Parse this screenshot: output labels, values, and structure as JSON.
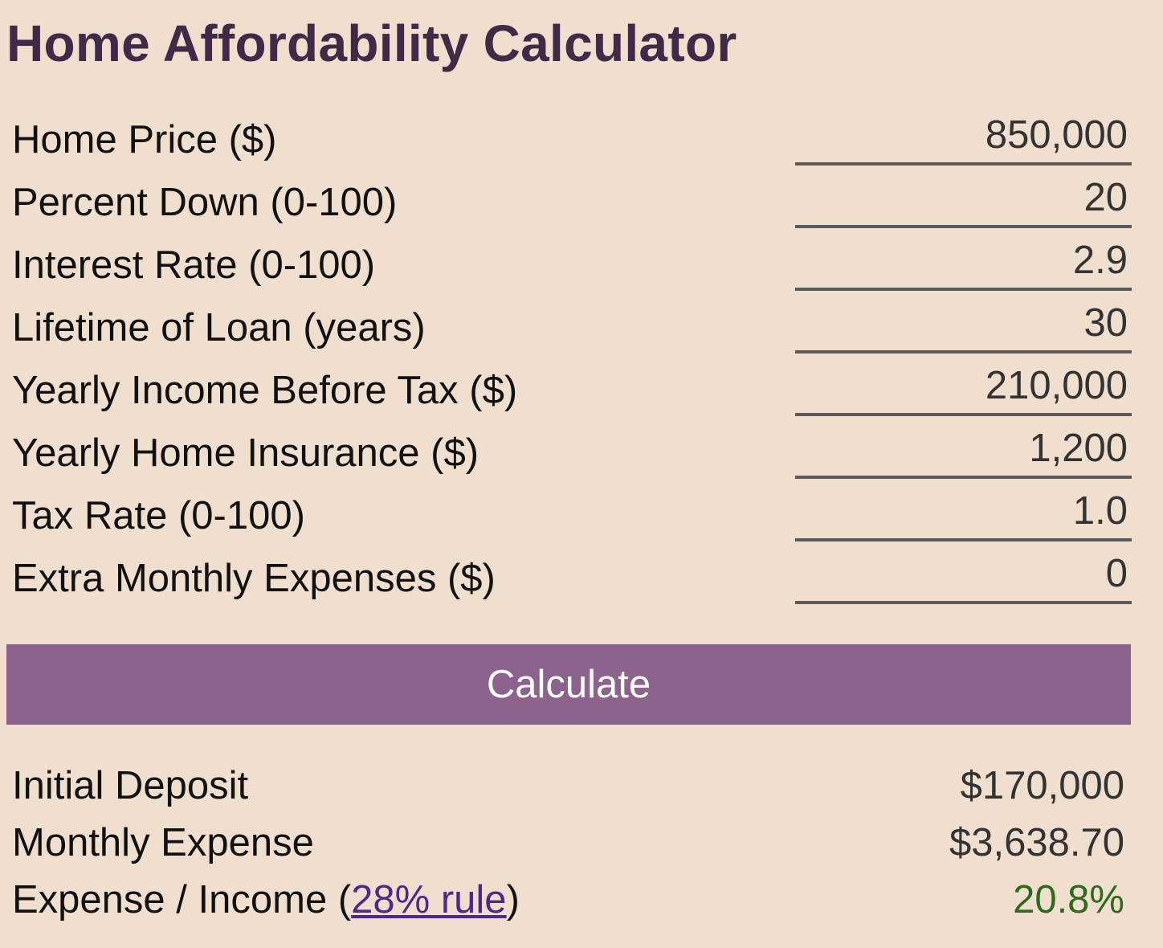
{
  "title": "Home Affordability Calculator",
  "fields": [
    {
      "label": "Home Price ($)",
      "value": "850,000"
    },
    {
      "label": "Percent Down (0-100)",
      "value": "20"
    },
    {
      "label": "Interest Rate (0-100)",
      "value": "2.9"
    },
    {
      "label": "Lifetime of Loan (years)",
      "value": "30"
    },
    {
      "label": "Yearly Income Before Tax ($)",
      "value": "210,000"
    },
    {
      "label": "Yearly Home Insurance ($)",
      "value": "1,200"
    },
    {
      "label": "Tax Rate (0-100)",
      "value": "1.0"
    },
    {
      "label": "Extra Monthly Expenses ($)",
      "value": "0"
    }
  ],
  "calculate_label": "Calculate",
  "results": {
    "initial_deposit": {
      "label": "Initial Deposit",
      "value": "$170,000"
    },
    "monthly_expense": {
      "label": "Monthly Expense",
      "value": "$3,638.70"
    },
    "expense_income": {
      "label_prefix": "Expense / Income (",
      "link_text": "28% rule",
      "label_suffix": ")",
      "value": "20.8%",
      "value_color": "#2e6a1c"
    }
  },
  "colors": {
    "background": "#f0dfce",
    "title": "#3f2a47",
    "button": "#8b638c",
    "link": "#4b2a8a"
  }
}
